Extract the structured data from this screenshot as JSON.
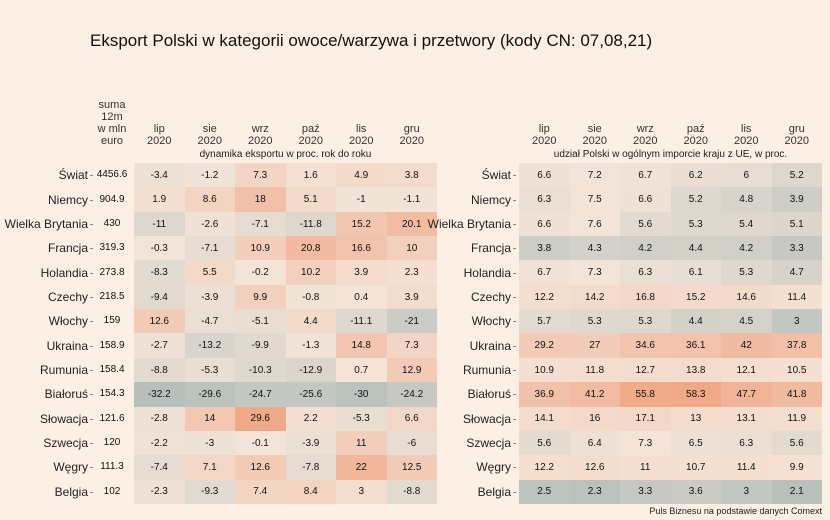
{
  "title": "Eksport Polski w kategorii owoce/warzywa i przetwory (kody CN: 07,08,21)",
  "source": "Puls Biznesu na podstawie danych Comext",
  "colors": {
    "background": "#fcefe3",
    "negative": "#b6c0bb",
    "positive": "#f0a888",
    "neutral": "#f4e4d8"
  },
  "chart_data": [
    {
      "type": "heatmap",
      "title": "dynamika eksportu w proc. rok do roku",
      "sum_header": [
        "suma",
        "12m",
        "w mln",
        "euro"
      ],
      "columns": [
        [
          "lip",
          "2020"
        ],
        [
          "sie",
          "2020"
        ],
        [
          "wrz",
          "2020"
        ],
        [
          "paź",
          "2020"
        ],
        [
          "lis",
          "2020"
        ],
        [
          "gru",
          "2020"
        ]
      ],
      "rows": [
        "Świat",
        "Niemcy",
        "Wielka Brytania",
        "Francja",
        "Holandia",
        "Czechy",
        "Włochy",
        "Ukraina",
        "Rumunia",
        "Białoruś",
        "Słowacja",
        "Szwecja",
        "Węgry",
        "Belgia"
      ],
      "sum_values": [
        "4456.6",
        "904.9",
        "430",
        "319.3",
        "273.8",
        "218.5",
        "159",
        "158.9",
        "158.4",
        "154.3",
        "121.6",
        "120",
        "111.3",
        "102"
      ],
      "values": [
        [
          -3.4,
          -1.2,
          7.3,
          1.6,
          4.9,
          3.8
        ],
        [
          1.9,
          8.6,
          18,
          5.1,
          -1,
          -1.1
        ],
        [
          -11,
          -2.6,
          -7.1,
          -11.8,
          15.2,
          20.1
        ],
        [
          -0.3,
          -7.1,
          10.9,
          20.8,
          16.6,
          10
        ],
        [
          -8.3,
          5.5,
          -0.2,
          10.2,
          3.9,
          2.3
        ],
        [
          -9.4,
          -3.9,
          9.9,
          -0.8,
          0.4,
          3.9
        ],
        [
          12.6,
          -4.7,
          -5.1,
          4.4,
          -11.1,
          -21
        ],
        [
          -2.7,
          -13.2,
          -9.9,
          -1.3,
          14.8,
          7.3
        ],
        [
          -8.8,
          -5.3,
          -10.3,
          -12.9,
          0.7,
          12.9
        ],
        [
          -32.2,
          -29.6,
          -24.7,
          -25.6,
          -30,
          -24.2
        ],
        [
          -2.8,
          14,
          29.6,
          2.2,
          -5.3,
          6.6
        ],
        [
          -2.2,
          -3,
          -0.1,
          -3.9,
          11,
          -6
        ],
        [
          -7.4,
          7.1,
          12.6,
          -7.8,
          22,
          12.5
        ],
        [
          -2.3,
          -9.3,
          7.4,
          8.4,
          3,
          -8.8
        ]
      ]
    },
    {
      "type": "heatmap",
      "title": "udział Polski w ogólnym imporcie kraju z UE, w proc.",
      "columns": [
        [
          "lip",
          "2020"
        ],
        [
          "sie",
          "2020"
        ],
        [
          "wrz",
          "2020"
        ],
        [
          "paź",
          "2020"
        ],
        [
          "lis",
          "2020"
        ],
        [
          "gru",
          "2020"
        ]
      ],
      "rows": [
        "Świat",
        "Niemcy",
        "Wielka Brytania",
        "Francja",
        "Holandia",
        "Czechy",
        "Włochy",
        "Ukraina",
        "Rumunia",
        "Białoruś",
        "Słowacja",
        "Szwecja",
        "Węgry",
        "Belgia"
      ],
      "values": [
        [
          6.6,
          7.2,
          6.7,
          6.2,
          6,
          5.2
        ],
        [
          6.3,
          7.5,
          6.6,
          5.2,
          4.8,
          3.9
        ],
        [
          6.6,
          7.6,
          5.6,
          5.3,
          5.4,
          5.1
        ],
        [
          3.8,
          4.3,
          4.2,
          4.4,
          4.2,
          3.3
        ],
        [
          6.7,
          7.3,
          6.3,
          6.1,
          5.3,
          4.7
        ],
        [
          12.2,
          14.2,
          16.8,
          15.2,
          14.6,
          11.4
        ],
        [
          5.7,
          5.3,
          5.3,
          4.4,
          4.5,
          3
        ],
        [
          29.2,
          27,
          34.6,
          36.1,
          42,
          37.8
        ],
        [
          10.9,
          11.8,
          12.7,
          13.8,
          12.1,
          10.5
        ],
        [
          36.9,
          41.2,
          55.8,
          58.3,
          47.7,
          41.8
        ],
        [
          14.1,
          16,
          17.1,
          13,
          13.1,
          11.9
        ],
        [
          5.6,
          6.4,
          7.3,
          6.5,
          6.3,
          5.6
        ],
        [
          12.2,
          12.6,
          11,
          10.7,
          11.4,
          9.9
        ],
        [
          2.5,
          2.3,
          3.3,
          3.6,
          3,
          2.1
        ]
      ]
    }
  ]
}
